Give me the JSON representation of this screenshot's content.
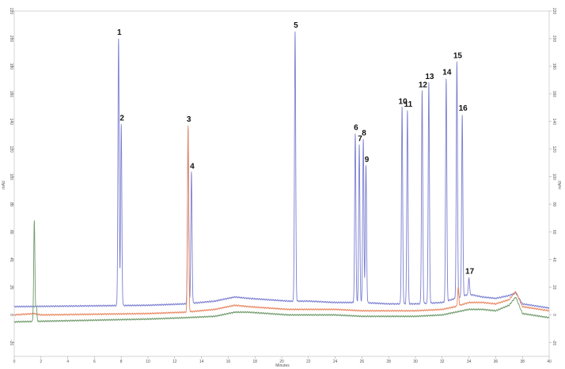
{
  "chart_data": {
    "type": "line",
    "title": "",
    "xlabel": "Minutes",
    "ylabel_left": "mAU",
    "ylabel_right": "mAU",
    "xlim": [
      0,
      40
    ],
    "ylim": [
      -30,
      220
    ],
    "x_ticks": [
      0,
      2,
      4,
      6,
      8,
      10,
      12,
      14,
      16,
      18,
      20,
      22,
      24,
      26,
      28,
      30,
      32,
      34,
      36,
      38,
      40
    ],
    "y_ticks": [
      -20,
      0,
      20,
      40,
      60,
      80,
      100,
      120,
      140,
      160,
      180,
      200,
      220
    ],
    "grid": false,
    "legend": "none",
    "series": [
      {
        "color": "#7b7fd0",
        "baseline": [
          [
            0,
            6
          ],
          [
            10,
            7
          ],
          [
            12.8,
            8
          ],
          [
            15,
            10
          ],
          [
            16.5,
            13
          ],
          [
            17.5,
            12
          ],
          [
            19,
            11
          ],
          [
            20.5,
            10
          ],
          [
            22,
            10
          ],
          [
            24,
            9
          ],
          [
            26,
            9
          ],
          [
            28,
            8
          ],
          [
            30,
            8
          ],
          [
            32,
            9
          ],
          [
            33,
            12
          ],
          [
            34,
            15
          ],
          [
            35,
            13
          ],
          [
            36,
            12
          ],
          [
            37,
            14
          ],
          [
            37.5,
            16
          ],
          [
            38,
            8
          ],
          [
            40,
            5
          ]
        ],
        "peaks": [
          [
            7.8,
            200
          ],
          [
            8.0,
            138
          ],
          [
            13.0,
            135
          ],
          [
            13.25,
            103
          ],
          [
            21.0,
            205
          ],
          [
            25.5,
            131
          ],
          [
            25.8,
            123
          ],
          [
            26.1,
            127
          ],
          [
            26.3,
            108
          ],
          [
            29.0,
            150
          ],
          [
            29.4,
            148
          ],
          [
            30.5,
            162
          ],
          [
            31.0,
            168
          ],
          [
            32.3,
            171
          ],
          [
            33.1,
            183
          ],
          [
            33.5,
            145
          ],
          [
            34.0,
            27
          ]
        ]
      },
      {
        "color": "#e8865f",
        "baseline": [
          [
            0,
            0
          ],
          [
            1.5,
            1
          ],
          [
            2,
            0
          ],
          [
            10,
            1
          ],
          [
            12.8,
            2
          ],
          [
            15,
            4
          ],
          [
            16.5,
            7
          ],
          [
            17.5,
            6
          ],
          [
            19,
            5
          ],
          [
            20.5,
            4
          ],
          [
            22,
            4
          ],
          [
            24,
            4
          ],
          [
            26,
            3
          ],
          [
            28,
            3
          ],
          [
            30,
            3
          ],
          [
            32,
            4
          ],
          [
            33,
            6
          ],
          [
            34,
            9
          ],
          [
            35,
            9
          ],
          [
            36,
            8
          ],
          [
            37,
            11
          ],
          [
            37.5,
            17
          ],
          [
            38,
            6
          ],
          [
            40,
            3
          ]
        ],
        "peaks": [
          [
            13.0,
            137
          ],
          [
            33.2,
            20
          ]
        ]
      },
      {
        "color": "#6f9a6a",
        "baseline": [
          [
            0,
            -5
          ],
          [
            10,
            -3
          ],
          [
            12.8,
            -2
          ],
          [
            15,
            -1
          ],
          [
            16.5,
            2
          ],
          [
            17.5,
            2
          ],
          [
            19,
            1
          ],
          [
            20.5,
            0
          ],
          [
            22,
            0
          ],
          [
            24,
            0
          ],
          [
            26,
            -1
          ],
          [
            28,
            -1
          ],
          [
            30,
            -1
          ],
          [
            32,
            0
          ],
          [
            33,
            2
          ],
          [
            34,
            4
          ],
          [
            35,
            4
          ],
          [
            36,
            3
          ],
          [
            37,
            7
          ],
          [
            37.5,
            13
          ],
          [
            38,
            1
          ],
          [
            40,
            -2
          ]
        ],
        "peaks": [
          [
            1.5,
            68
          ],
          [
            1.65,
            6
          ]
        ]
      }
    ],
    "peak_labels": [
      {
        "text": "1",
        "x": 7.8,
        "y": 200
      },
      {
        "text": "2",
        "x": 8.0,
        "y": 138
      },
      {
        "text": "3",
        "x": 13.0,
        "y": 137
      },
      {
        "text": "4",
        "x": 13.25,
        "y": 103
      },
      {
        "text": "5",
        "x": 21.0,
        "y": 205
      },
      {
        "text": "6",
        "x": 25.5,
        "y": 131
      },
      {
        "text": "7",
        "x": 25.8,
        "y": 123
      },
      {
        "text": "8",
        "x": 26.1,
        "y": 127
      },
      {
        "text": "9",
        "x": 26.3,
        "y": 108
      },
      {
        "text": "10",
        "x": 29.0,
        "y": 150
      },
      {
        "text": "11",
        "x": 29.4,
        "y": 148
      },
      {
        "text": "12",
        "x": 30.5,
        "y": 162
      },
      {
        "text": "13",
        "x": 31.0,
        "y": 168
      },
      {
        "text": "14",
        "x": 32.3,
        "y": 171
      },
      {
        "text": "15",
        "x": 33.1,
        "y": 183
      },
      {
        "text": "16",
        "x": 33.5,
        "y": 145
      },
      {
        "text": "17",
        "x": 34.0,
        "y": 27
      }
    ]
  }
}
